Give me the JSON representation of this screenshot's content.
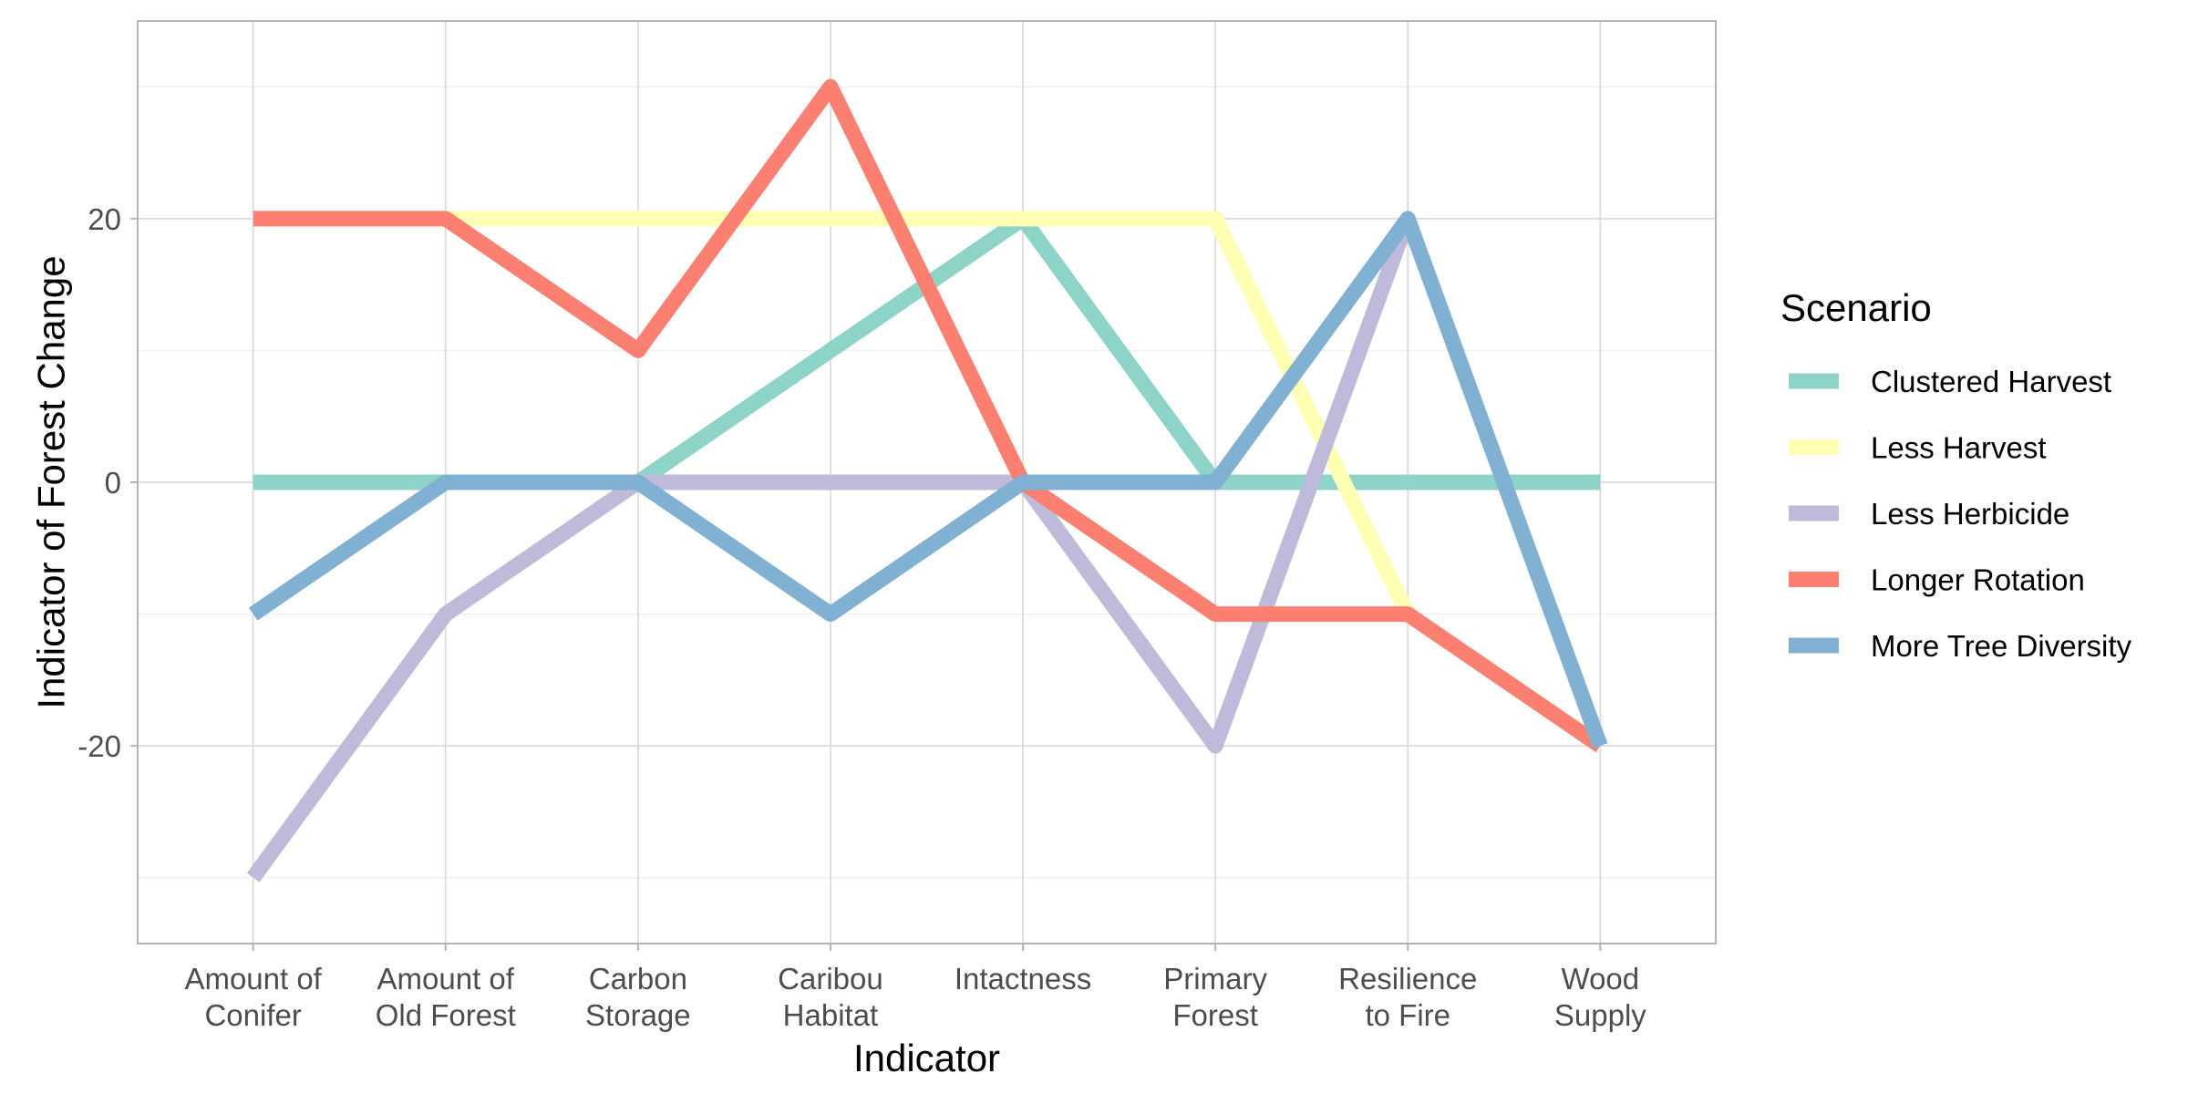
{
  "chart_data": {
    "type": "line",
    "title": "",
    "xlabel": "Indicator",
    "ylabel": "Indicator of Forest Change",
    "categories": [
      [
        "Amount of",
        "Conifer"
      ],
      [
        "Amount of",
        "Old Forest"
      ],
      [
        "Carbon",
        "Storage"
      ],
      [
        "Caribou",
        "Habitat"
      ],
      [
        "Intactness"
      ],
      [
        "Primary",
        "Forest"
      ],
      [
        "Resilience",
        "to Fire"
      ],
      [
        "Wood",
        "Supply"
      ]
    ],
    "ylim": [
      -35,
      35
    ],
    "yticks": [
      -20,
      0,
      20
    ],
    "grid": true,
    "legend": {
      "title": "Scenario",
      "placement": "right"
    },
    "series": [
      {
        "name": "Clustered Harvest",
        "color": "#8DD3C7",
        "values": [
          0,
          0,
          0,
          10,
          20,
          0,
          0,
          0
        ]
      },
      {
        "name": "Less Harvest",
        "color": "#FFFFB3",
        "values": [
          20,
          20,
          20,
          20,
          20,
          20,
          -10,
          -20
        ]
      },
      {
        "name": "Less Herbicide",
        "color": "#BEBADA",
        "values": [
          -30,
          -10,
          0,
          0,
          0,
          -20,
          20,
          -20
        ]
      },
      {
        "name": "Longer Rotation",
        "color": "#FB8072",
        "values": [
          20,
          20,
          10,
          30,
          0,
          -10,
          -10,
          -20
        ]
      },
      {
        "name": "More Tree Diversity",
        "color": "#80B1D3",
        "values": [
          -10,
          0,
          0,
          -10,
          0,
          0,
          20,
          -20
        ]
      }
    ]
  }
}
